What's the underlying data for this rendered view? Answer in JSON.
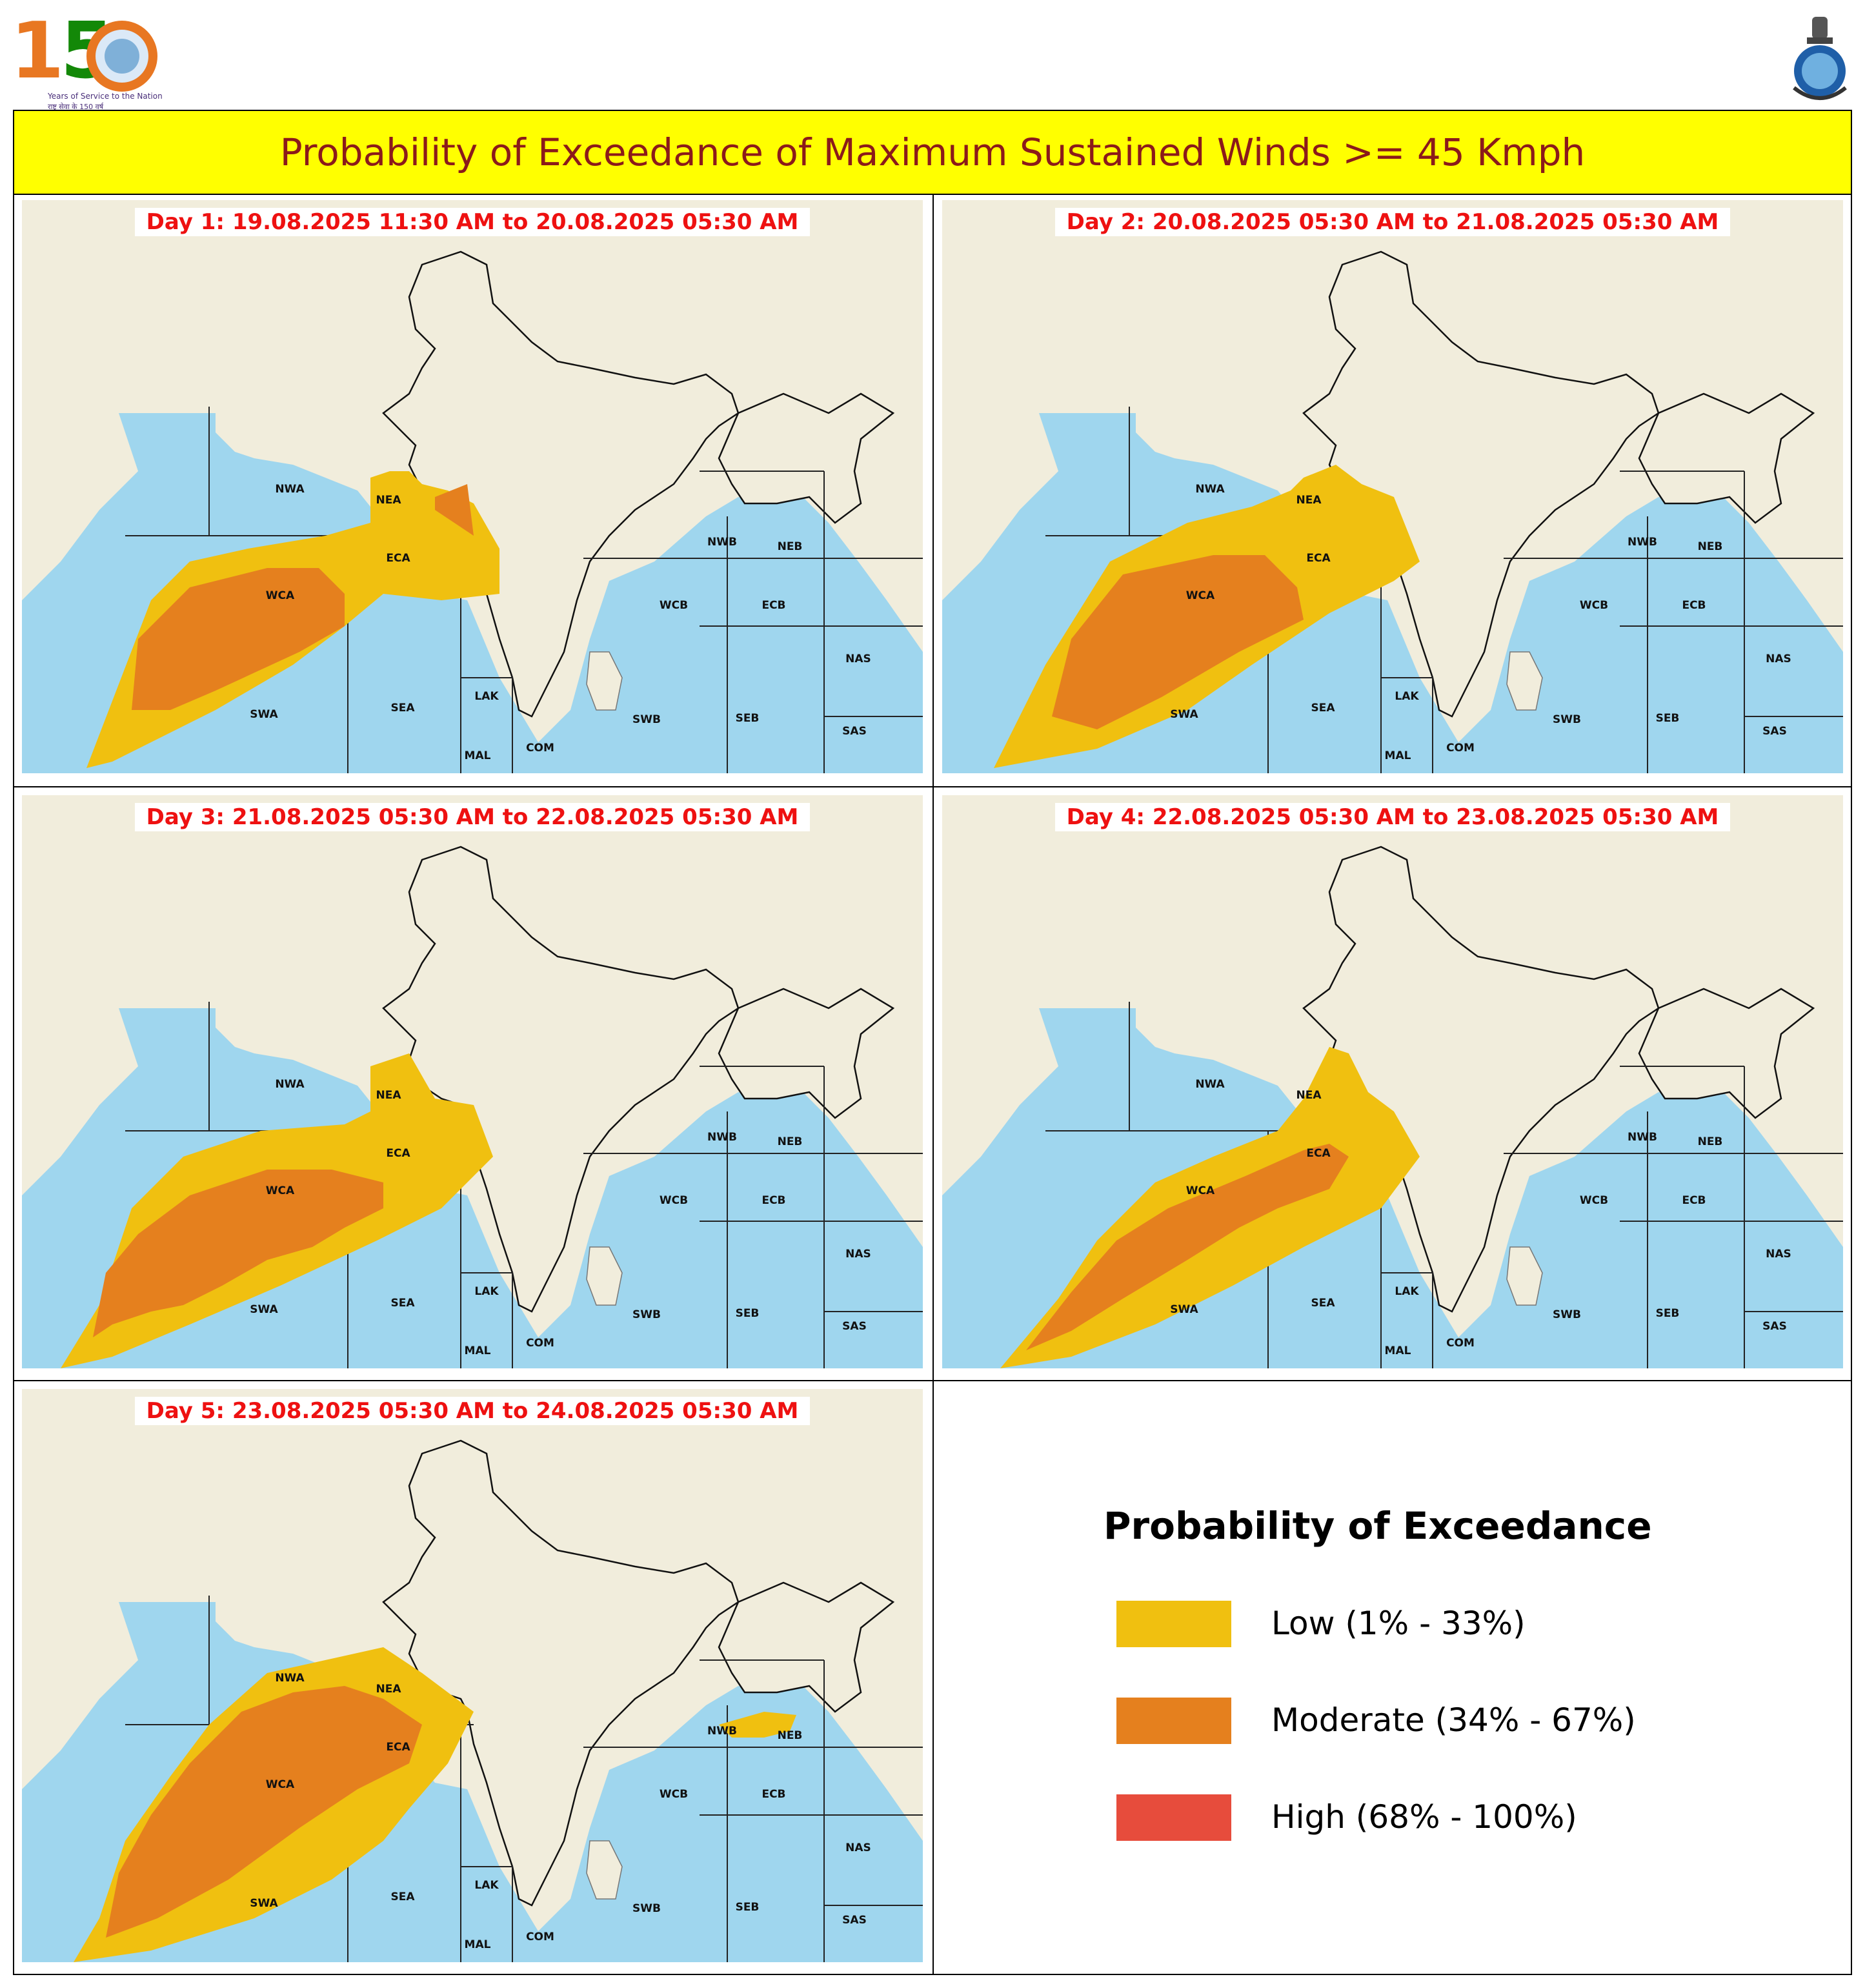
{
  "header": {
    "logo_number": "150",
    "logo_tagline": "Years of Service to the Nation",
    "logo_tagline_hindi": "राष्ट्र सेवा के 150 वर्ष",
    "title": "Probability of Exceedance of Maximum Sustained Winds >= 45 Kmph"
  },
  "regions": [
    "NWA",
    "NEA",
    "WCA",
    "ECA",
    "SWA",
    "SEA",
    "LAK",
    "MAL",
    "COM",
    "NWB",
    "NEB",
    "WCB",
    "ECB",
    "NAS",
    "SWB",
    "SEB",
    "SAS"
  ],
  "panels": [
    {
      "label": "Day 1: 19.08.2025 11:30 AM to 20.08.2025 05:30 AM"
    },
    {
      "label": "Day 2: 20.08.2025 05:30 AM to 21.08.2025 05:30 AM"
    },
    {
      "label": "Day 3: 21.08.2025 05:30 AM to 22.08.2025 05:30 AM"
    },
    {
      "label": "Day 4: 22.08.2025 05:30 AM to 23.08.2025 05:30 AM"
    },
    {
      "label": "Day 5: 23.08.2025 05:30 AM to 24.08.2025 05:30 AM"
    }
  ],
  "legend": {
    "title": "Probability of Exceedance",
    "items": [
      {
        "label": "Low (1% - 33%)",
        "color": "#f0c010"
      },
      {
        "label": "Moderate (34% - 67%)",
        "color": "#e5801e"
      },
      {
        "label": "High (68% - 100%)",
        "color": "#e74c3c"
      }
    ]
  },
  "colors": {
    "title_bg": "#ffff00",
    "title_text": "#8b1a1a",
    "panel_label": "#ee1111",
    "sea": "#9fd6ee",
    "land": "#f1eddc"
  }
}
